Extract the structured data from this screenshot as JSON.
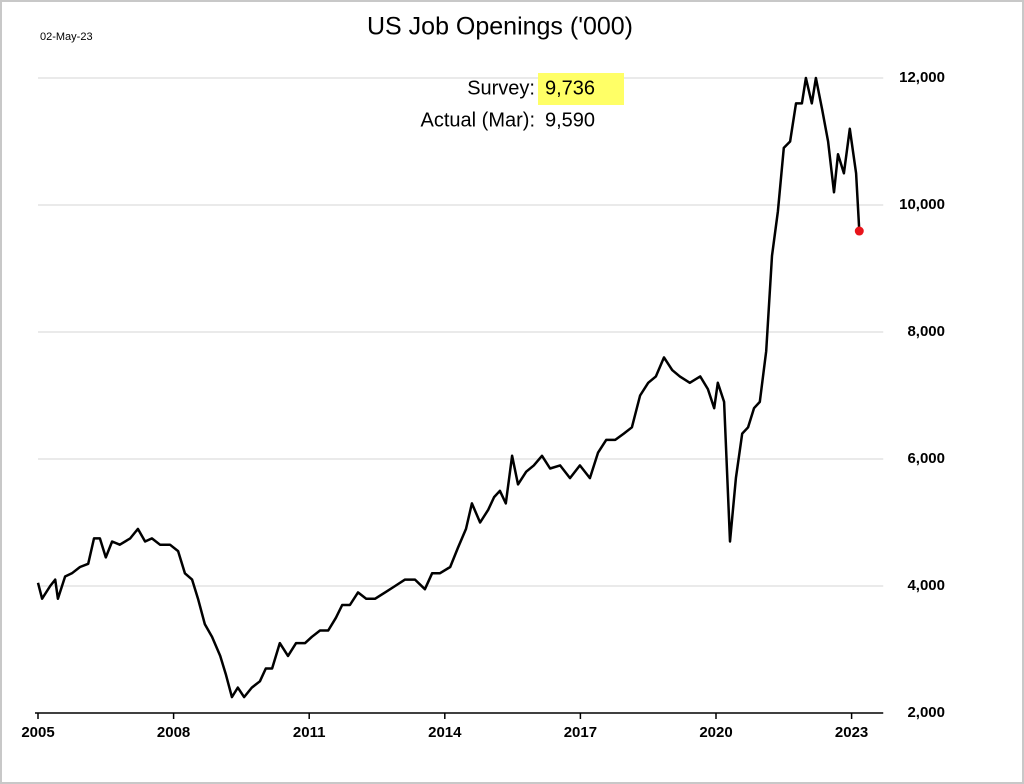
{
  "chart_data": {
    "type": "line",
    "title": "US Job Openings ('000)",
    "annotations": {
      "date": "02-May-23",
      "survey_label": "Survey:",
      "survey_value": "9,736",
      "actual_label": "Actual (Mar):",
      "actual_value": "9,590"
    },
    "color": "#000000",
    "highlight_color": "#e8141b",
    "annotation_highlight_color": "#ffff66",
    "grid": true,
    "xlim": [
      2005,
      2023.7
    ],
    "xticks": [
      2005,
      2008,
      2011,
      2014,
      2017,
      2020,
      2023
    ],
    "ylim": [
      2000,
      12000
    ],
    "yticks": [
      {
        "value": 2000,
        "label": "2,000"
      },
      {
        "value": 4000,
        "label": "4,000"
      },
      {
        "value": 6000,
        "label": "6,000"
      },
      {
        "value": 8000,
        "label": "8,000"
      },
      {
        "value": 10000,
        "label": "10,000"
      },
      {
        "value": 12000,
        "label": "12,000"
      }
    ],
    "x": [
      2005.0,
      2005.09,
      2005.27,
      2005.38,
      2005.44,
      2005.6,
      2005.75,
      2005.93,
      2006.11,
      2006.24,
      2006.37,
      2006.5,
      2006.64,
      2006.81,
      2007.04,
      2007.21,
      2007.37,
      2007.52,
      2007.7,
      2007.92,
      2008.1,
      2008.25,
      2008.41,
      2008.54,
      2008.69,
      2008.85,
      2009.03,
      2009.16,
      2009.29,
      2009.42,
      2009.56,
      2009.73,
      2009.91,
      2010.04,
      2010.18,
      2010.35,
      2010.53,
      2010.71,
      2010.91,
      2011.06,
      2011.24,
      2011.42,
      2011.59,
      2011.73,
      2011.9,
      2012.08,
      2012.26,
      2012.46,
      2012.68,
      2012.9,
      2013.12,
      2013.34,
      2013.56,
      2013.72,
      2013.89,
      2014.12,
      2014.29,
      2014.47,
      2014.6,
      2014.78,
      2014.96,
      2015.09,
      2015.22,
      2015.35,
      2015.49,
      2015.62,
      2015.8,
      2015.97,
      2016.15,
      2016.33,
      2016.55,
      2016.77,
      2016.99,
      2017.21,
      2017.39,
      2017.57,
      2017.77,
      2017.96,
      2018.14,
      2018.32,
      2018.5,
      2018.67,
      2018.85,
      2019.03,
      2019.2,
      2019.42,
      2019.65,
      2019.82,
      2019.96,
      2020.04,
      2020.18,
      2020.31,
      2020.44,
      2020.58,
      2020.71,
      2020.84,
      2020.97,
      2021.11,
      2021.24,
      2021.37,
      2021.5,
      2021.64,
      2021.77,
      2021.9,
      2021.99,
      2022.12,
      2022.21,
      2022.35,
      2022.48,
      2022.61,
      2022.7,
      2022.83,
      2022.96,
      2023.1,
      2023.17
    ],
    "values": [
      4050,
      3800,
      4000,
      4100,
      3800,
      4150,
      4200,
      4300,
      4350,
      4750,
      4750,
      4450,
      4700,
      4650,
      4750,
      4900,
      4700,
      4750,
      4650,
      4650,
      4550,
      4200,
      4100,
      3800,
      3400,
      3200,
      2900,
      2600,
      2250,
      2400,
      2250,
      2400,
      2500,
      2700,
      2700,
      3100,
      2900,
      3100,
      3100,
      3200,
      3300,
      3300,
      3500,
      3700,
      3700,
      3900,
      3800,
      3800,
      3900,
      4000,
      4100,
      4100,
      3950,
      4200,
      4200,
      4300,
      4600,
      4900,
      5300,
      5000,
      5200,
      5400,
      5500,
      5300,
      6050,
      5600,
      5800,
      5900,
      6050,
      5850,
      5900,
      5700,
      5900,
      5700,
      6100,
      6300,
      6300,
      6400,
      6500,
      7000,
      7200,
      7300,
      7600,
      7400,
      7300,
      7200,
      7300,
      7100,
      6800,
      7200,
      6900,
      4700,
      5700,
      6400,
      6500,
      6800,
      6900,
      7700,
      9200,
      9900,
      10900,
      11000,
      11600,
      11600,
      12000,
      11600,
      12000,
      11500,
      11000,
      10200,
      10800,
      10500,
      11200,
      10500,
      9590
    ]
  }
}
